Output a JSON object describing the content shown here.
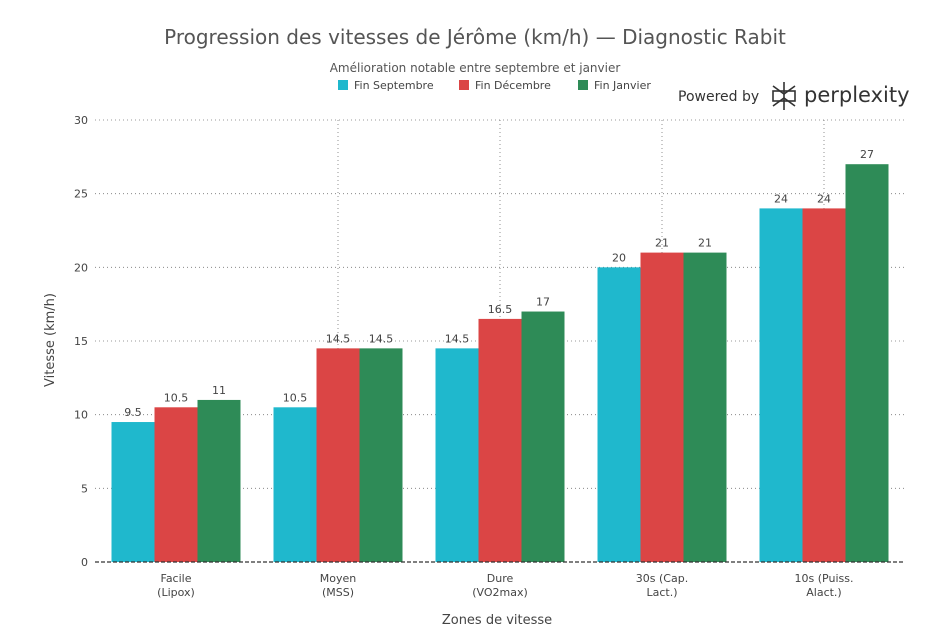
{
  "branding": {
    "powered_by": "Powered by",
    "name": "perplexity",
    "icon": "perplexity-logo-icon"
  },
  "chart_data": {
    "type": "bar",
    "title": "Progression des vitesses de Jérôme (km/h) — Diagnostic Rabit",
    "subtitle": "Amélioration notable entre septembre et janvier",
    "xlabel": "Zones de vitesse",
    "ylabel": "Vitesse (km/h)",
    "ylim": [
      0,
      30
    ],
    "yticks": [
      0,
      5,
      10,
      15,
      20,
      25,
      30
    ],
    "grid": true,
    "legend_position": "top",
    "categories": [
      [
        "Facile",
        "(Lipox)"
      ],
      [
        "Moyen",
        "(MSS)"
      ],
      [
        "Dure",
        "(VO2max)"
      ],
      [
        "30s (Cap.",
        "Lact.)"
      ],
      [
        "10s (Puiss.",
        "Alact.)"
      ]
    ],
    "series": [
      {
        "name": "Fin Septembre",
        "color": "#1FB8CD",
        "values": [
          9.5,
          10.5,
          14.5,
          20,
          24
        ],
        "labels": [
          "9.5",
          "10.5",
          "14.5",
          "20",
          "24"
        ]
      },
      {
        "name": "Fin Décembre",
        "color": "#DB4545",
        "values": [
          10.5,
          14.5,
          16.5,
          21,
          24
        ],
        "labels": [
          "10.5",
          "14.5",
          "16.5",
          "21",
          "24"
        ]
      },
      {
        "name": "Fin Janvier",
        "color": "#2E8B57",
        "values": [
          11,
          14.5,
          17,
          21,
          27
        ],
        "labels": [
          "11",
          "14.5",
          "17",
          "21",
          "27"
        ]
      }
    ]
  }
}
